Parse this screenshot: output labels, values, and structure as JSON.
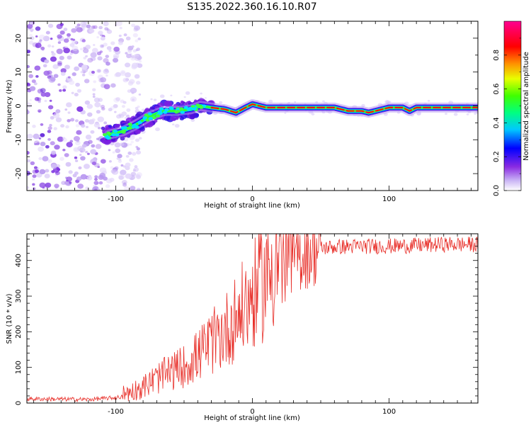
{
  "title": "S135.2022.360.16.10.R07",
  "colors": {
    "spectrogram_cmap": [
      "#ffffff",
      "#d8c8f8",
      "#8a2be2",
      "#0000ff",
      "#00c8ff",
      "#00ff00",
      "#ffff00",
      "#ff8c00",
      "#ff0000",
      "#ff0090"
    ],
    "snr_line": "#e8302a"
  },
  "chart_data": [
    {
      "type": "heatmap",
      "title": "S135.2022.360.16.10.R07",
      "xlabel": "Height of straight line (km)",
      "ylabel": "Frequency (Hz)",
      "xlim": [
        -165,
        165
      ],
      "ylim": [
        -25,
        25
      ],
      "xticks": [
        -100,
        0,
        100
      ],
      "yticks": [
        -20,
        -10,
        0,
        10,
        20
      ],
      "colorbar": {
        "label": "Normalized spectral amplitude",
        "range": [
          0,
          1
        ],
        "ticks": [
          "0.0",
          "0.2",
          "0.4",
          "0.6",
          "0.8"
        ]
      },
      "ridge": {
        "x": [
          -105,
          -95,
          -85,
          -75,
          -65,
          -55,
          -45,
          -38,
          -30,
          -20,
          -12,
          -5,
          0,
          10,
          25,
          45,
          60,
          70,
          80,
          85,
          90,
          100,
          110,
          115,
          120,
          140,
          165
        ],
        "y": [
          -8.5,
          -7.5,
          -5.5,
          -3,
          -1.5,
          -1.5,
          -1,
          0,
          -0.5,
          -1,
          -2,
          -0.5,
          0.5,
          -0.5,
          -0.5,
          -0.5,
          -0.5,
          -1.5,
          -1.5,
          -2,
          -1.5,
          -0.5,
          -0.5,
          -1.5,
          -0.5,
          -0.5,
          -0.5
        ]
      },
      "noise_region_x": [
        -165,
        -100
      ]
    },
    {
      "type": "line",
      "xlabel": "Height of straight line (km)",
      "ylabel": "SNR (10 * v/v)",
      "xlim": [
        -165,
        165
      ],
      "ylim": [
        0,
        475
      ],
      "xticks": [
        -100,
        0,
        100
      ],
      "yticks": [
        0,
        100,
        200,
        300,
        400
      ],
      "trend": {
        "x": [
          -165,
          -120,
          -100,
          -90,
          -80,
          -70,
          -60,
          -50,
          -40,
          -30,
          -20,
          -10,
          0,
          10,
          20,
          30,
          40,
          50,
          60,
          80,
          100,
          120,
          140,
          165
        ],
        "y": [
          12,
          10,
          15,
          22,
          35,
          55,
          70,
          85,
          110,
          140,
          170,
          210,
          250,
          300,
          360,
          400,
          425,
          435,
          438,
          440,
          440,
          442,
          445,
          445
        ]
      },
      "max_value": 475
    }
  ]
}
